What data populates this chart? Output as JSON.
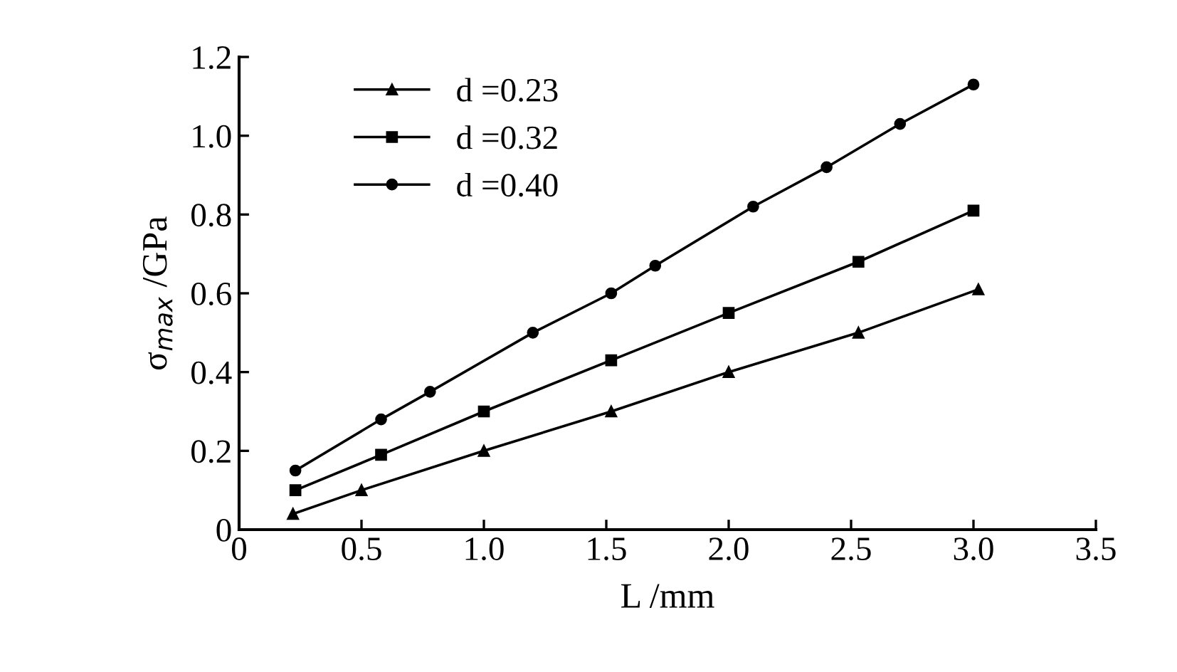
{
  "chart_data": {
    "type": "line",
    "xlabel": "L /mm",
    "ylabel": "σ$_{max}$ /GPa",
    "xlim": [
      0,
      3.5
    ],
    "xticks": [
      0,
      {
        "value": 0.5,
        "label": "0.5"
      },
      {
        "value": 1.0,
        "label": "1.0"
      },
      {
        "value": 1.5,
        "label": "1.5"
      },
      {
        "value": 2.0,
        "label": "2.0"
      },
      {
        "value": 2.5,
        "label": "2.5"
      },
      {
        "value": 3.0,
        "label": "3.0"
      },
      {
        "value": 3.5,
        "label": "3.5"
      }
    ],
    "ylim": [
      0,
      1.2
    ],
    "yticks": [
      0,
      {
        "value": 0.2,
        "label": "0.2"
      },
      {
        "value": 0.4,
        "label": "0.4"
      },
      {
        "value": 0.6,
        "label": "0.6"
      },
      {
        "value": 0.8,
        "label": "0.8"
      },
      {
        "value": 1.0,
        "label": "1.0"
      },
      {
        "value": 1.2,
        "label": "1.2"
      }
    ],
    "grid": false,
    "legend": "top left",
    "series": [
      {
        "name": "d =0.23",
        "color": "#000000",
        "marker": "triangle",
        "x": [
          0.22,
          0.5,
          1.0,
          1.52,
          2.0,
          2.53,
          3.02
        ],
        "values": [
          0.04,
          0.1,
          0.2,
          0.3,
          0.4,
          0.5,
          0.61
        ]
      },
      {
        "name": "d =0.32",
        "color": "#000000",
        "marker": "square",
        "x": [
          0.23,
          0.58,
          1.0,
          1.52,
          2.0,
          2.53,
          3.0
        ],
        "values": [
          0.1,
          0.19,
          0.3,
          0.43,
          0.55,
          0.68,
          0.81
        ]
      },
      {
        "name": "d =0.40",
        "color": "#000000",
        "marker": "circle",
        "x": [
          0.23,
          0.58,
          0.78,
          1.2,
          1.52,
          1.7,
          2.1,
          2.4,
          2.7,
          3.0
        ],
        "values": [
          0.15,
          0.28,
          0.35,
          0.5,
          0.6,
          0.67,
          0.82,
          0.92,
          1.03,
          1.13
        ]
      }
    ]
  }
}
